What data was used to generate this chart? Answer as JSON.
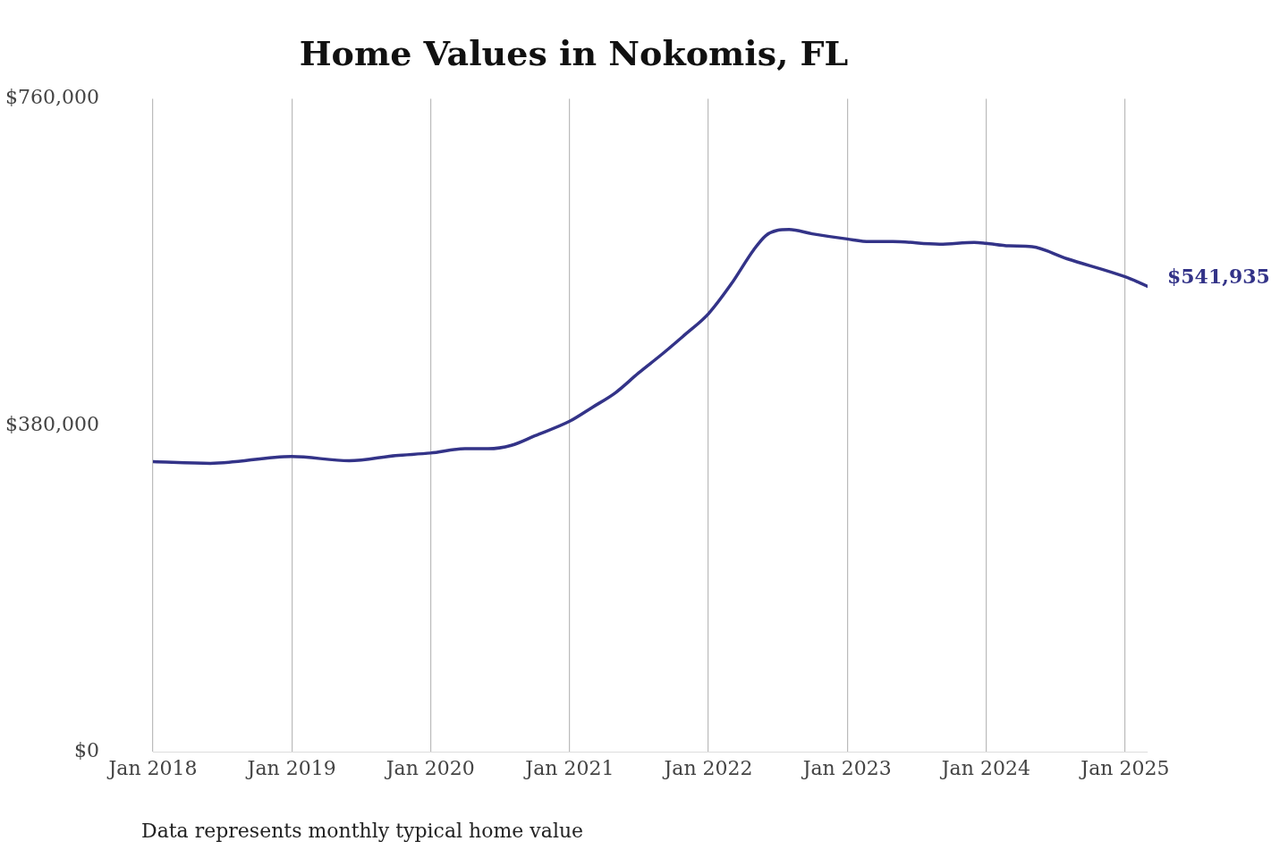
{
  "chart_data": {
    "type": "line",
    "title": "Home Values in Nokomis, FL",
    "x": [
      "2018-01",
      "2018-06",
      "2019-01",
      "2019-06",
      "2019-10",
      "2020-01",
      "2020-04",
      "2020-06",
      "2020-08",
      "2020-10",
      "2021-01",
      "2021-03",
      "2021-05",
      "2021-07",
      "2021-09",
      "2021-11",
      "2022-01",
      "2022-03",
      "2022-05",
      "2022-06",
      "2022-07",
      "2022-08",
      "2022-10",
      "2023-01",
      "2023-03",
      "2023-05",
      "2023-09",
      "2023-12",
      "2024-01",
      "2024-03",
      "2024-05",
      "2024-08",
      "2025-01",
      "2025-03"
    ],
    "series": [
      {
        "color": "#333388",
        "values": [
          338000,
          336000,
          344000,
          339000,
          345000,
          348000,
          353000,
          353000,
          357000,
          368000,
          385000,
          401000,
          418000,
          441000,
          463000,
          486000,
          510000,
          544000,
          585000,
          601000,
          607000,
          608000,
          603000,
          597000,
          594000,
          594000,
          591000,
          593000,
          592000,
          589000,
          588000,
          574000,
          553000,
          541935
        ]
      }
    ],
    "xticks": [
      {
        "value": "2018-01",
        "label": "Jan 2018"
      },
      {
        "value": "2019-01",
        "label": "Jan 2019"
      },
      {
        "value": "2020-01",
        "label": "Jan 2020"
      },
      {
        "value": "2021-01",
        "label": "Jan 2021"
      },
      {
        "value": "2022-01",
        "label": "Jan 2022"
      },
      {
        "value": "2023-01",
        "label": "Jan 2023"
      },
      {
        "value": "2024-01",
        "label": "Jan 2024"
      },
      {
        "value": "2025-01",
        "label": "Jan 2025"
      }
    ],
    "xlim": [
      "2018-01",
      "2025-03"
    ],
    "ylim": [
      0,
      760000
    ],
    "yticks": [
      {
        "value": 0,
        "label": "$0"
      },
      {
        "value": 380000,
        "label": "$380,000"
      },
      {
        "value": 760000,
        "label": "$760,000"
      }
    ],
    "grid": "x",
    "legend": false,
    "marker": "none",
    "line_style": "solid",
    "annotations": [
      {
        "text": "$541,935",
        "x": "2025-03",
        "y": 541935
      },
      "Data represents monthly typical home value"
    ]
  }
}
